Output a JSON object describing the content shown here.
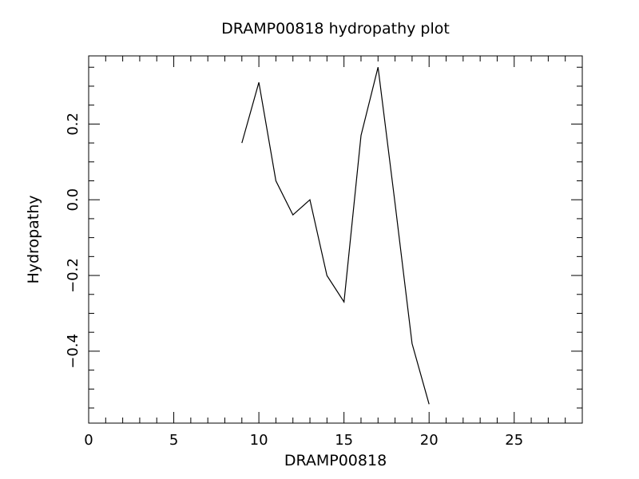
{
  "chart_data": {
    "type": "line",
    "title": "DRAMP00818 hydropathy plot",
    "xlabel": "DRAMP00818",
    "ylabel": "Hydropathy",
    "xlim": [
      0,
      29
    ],
    "ylim": [
      -0.59,
      0.38
    ],
    "x_ticks": [
      0,
      5,
      10,
      15,
      20,
      25
    ],
    "x_tick_labels": [
      "0",
      "5",
      "10",
      "15",
      "20",
      "25"
    ],
    "y_ticks": [
      -0.4,
      -0.2,
      0.0,
      0.2
    ],
    "y_tick_labels": [
      "−0.4",
      "−0.2",
      "0.0",
      "0.2"
    ],
    "grid": false,
    "series": [
      {
        "x": [
          9,
          10,
          11,
          12,
          13,
          14,
          15,
          16,
          17,
          18,
          19,
          20
        ],
        "y": [
          0.15,
          0.31,
          0.05,
          -0.04,
          0.0,
          -0.2,
          -0.27,
          0.17,
          0.35,
          -0.01,
          -0.38,
          -0.54
        ]
      }
    ],
    "colors": {
      "line": "#000000",
      "axes": "#000000",
      "background": "#ffffff"
    }
  }
}
